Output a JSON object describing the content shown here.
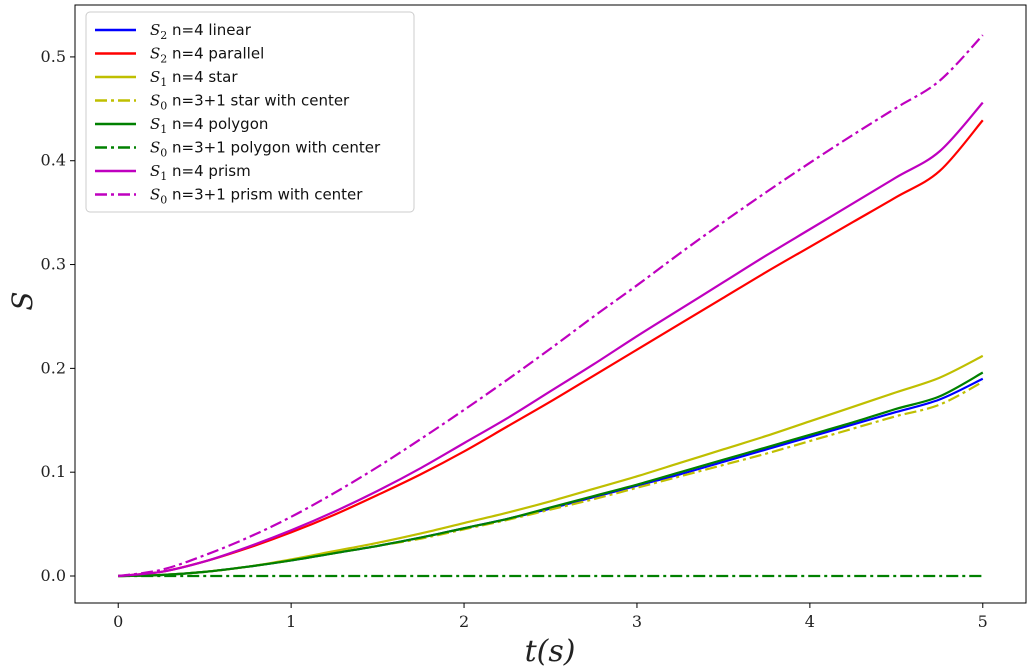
{
  "chart_data": {
    "type": "line",
    "xlabel": "t(s)",
    "ylabel": "S",
    "xlim": [
      -0.25,
      5.25
    ],
    "ylim": [
      -0.026,
      0.55
    ],
    "xticks": [
      0,
      1,
      2,
      3,
      4,
      5
    ],
    "yticks": [
      0.0,
      0.1,
      0.2,
      0.3,
      0.4,
      0.5
    ],
    "xtick_labels": [
      "0",
      "1",
      "2",
      "3",
      "4",
      "5"
    ],
    "ytick_labels": [
      "0.0",
      "0.1",
      "0.2",
      "0.3",
      "0.4",
      "0.5"
    ],
    "legend_position": "upper-left",
    "x": [
      0,
      0.25,
      0.5,
      0.75,
      1,
      1.25,
      1.5,
      1.75,
      2,
      2.25,
      2.5,
      2.75,
      3,
      3.25,
      3.5,
      3.75,
      4,
      4.25,
      4.5,
      4.75,
      5
    ],
    "series": [
      {
        "name": "S2 n=4 linear",
        "math": "S",
        "sub": "2",
        "text": "n=4 linear",
        "color": "#0000ff",
        "style": "solid",
        "values": [
          0,
          0.001,
          0.004,
          0.009,
          0.015,
          0.022,
          0.029,
          0.037,
          0.046,
          0.055,
          0.065,
          0.076,
          0.087,
          0.098,
          0.11,
          0.122,
          0.134,
          0.146,
          0.158,
          0.17,
          0.19
        ]
      },
      {
        "name": "S2 n=4 parallel",
        "math": "S",
        "sub": "2",
        "text": "n=4 parallel",
        "color": "#ff0000",
        "style": "solid",
        "values": [
          0,
          0.004,
          0.014,
          0.027,
          0.042,
          0.059,
          0.078,
          0.098,
          0.12,
          0.144,
          0.168,
          0.193,
          0.218,
          0.243,
          0.268,
          0.293,
          0.317,
          0.341,
          0.365,
          0.39,
          0.439
        ]
      },
      {
        "name": "S1 n=4 star",
        "math": "S",
        "sub": "1",
        "text": "n=4 star",
        "color": "#bfbf00",
        "style": "solid",
        "values": [
          0,
          0.001,
          0.004,
          0.009,
          0.016,
          0.024,
          0.032,
          0.041,
          0.051,
          0.061,
          0.072,
          0.084,
          0.096,
          0.109,
          0.122,
          0.135,
          0.149,
          0.163,
          0.177,
          0.191,
          0.212
        ]
      },
      {
        "name": "S0 n=3+1 star with center",
        "math": "S",
        "sub": "0",
        "text": "n=3+1 star with center",
        "color": "#bfbf00",
        "style": "dashdot",
        "values": [
          0,
          0.001,
          0.004,
          0.009,
          0.015,
          0.022,
          0.029,
          0.036,
          0.045,
          0.054,
          0.064,
          0.074,
          0.085,
          0.096,
          0.107,
          0.118,
          0.13,
          0.142,
          0.154,
          0.165,
          0.187
        ]
      },
      {
        "name": "S1 n=4 polygon",
        "math": "S",
        "sub": "1",
        "text": "n=4 polygon",
        "color": "#008000",
        "style": "solid",
        "values": [
          0,
          0.001,
          0.004,
          0.009,
          0.015,
          0.022,
          0.029,
          0.037,
          0.046,
          0.055,
          0.066,
          0.077,
          0.088,
          0.1,
          0.112,
          0.124,
          0.136,
          0.148,
          0.161,
          0.173,
          0.196
        ]
      },
      {
        "name": "S0 n=3+1 polygon with center",
        "math": "S",
        "sub": "0",
        "text": "n=3+1 polygon with center",
        "color": "#008000",
        "style": "dashdot",
        "values": [
          0,
          0,
          0,
          0,
          0,
          0,
          0,
          0,
          0,
          0,
          0,
          0,
          0,
          0,
          0,
          0,
          0,
          0,
          0,
          0,
          0
        ]
      },
      {
        "name": "S1 n=4 prism",
        "math": "S",
        "sub": "1",
        "text": "n=4 prism",
        "color": "#bf00bf",
        "style": "solid",
        "values": [
          0,
          0.004,
          0.014,
          0.028,
          0.044,
          0.062,
          0.082,
          0.104,
          0.128,
          0.152,
          0.178,
          0.204,
          0.231,
          0.257,
          0.283,
          0.309,
          0.334,
          0.359,
          0.384,
          0.409,
          0.456
        ]
      },
      {
        "name": "S0 n=3+1 prism with center",
        "math": "S",
        "sub": "0",
        "text": "n=3+1 prism with center",
        "color": "#bf00bf",
        "style": "dashdot",
        "values": [
          0,
          0.006,
          0.02,
          0.037,
          0.057,
          0.08,
          0.105,
          0.132,
          0.16,
          0.189,
          0.219,
          0.25,
          0.28,
          0.311,
          0.341,
          0.37,
          0.398,
          0.425,
          0.451,
          0.477,
          0.521
        ]
      }
    ]
  }
}
